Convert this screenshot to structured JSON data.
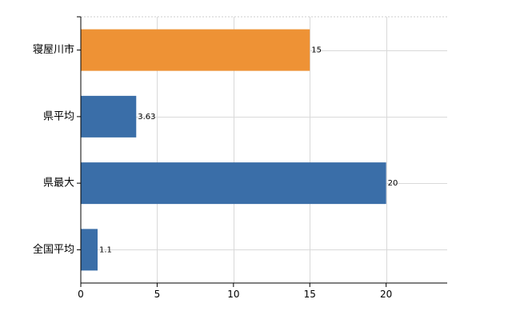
{
  "chart_data": {
    "type": "bar",
    "orientation": "horizontal",
    "categories": [
      "寝屋川市",
      "県平均",
      "県最大",
      "全国平均"
    ],
    "values": [
      15,
      3.63,
      20,
      1.1
    ],
    "value_labels": [
      "15",
      "3.63",
      "20",
      "1.1"
    ],
    "colors": [
      "#ee9235",
      "#3a6ea8",
      "#3a6ea8",
      "#3a6ea8"
    ],
    "xlim": [
      0,
      24
    ],
    "xticks": [
      0,
      5,
      10,
      15,
      20
    ],
    "grid": true,
    "title": "",
    "xlabel": "",
    "ylabel": ""
  }
}
